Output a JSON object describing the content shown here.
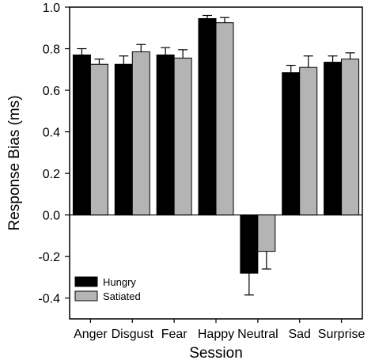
{
  "chart_data": {
    "type": "bar",
    "title": "",
    "xlabel": "Session",
    "ylabel": "Response Bias (ms)",
    "ylim": [
      -0.5,
      1.0
    ],
    "yticks": [
      {
        "value": 1.0,
        "label": "1.0"
      },
      {
        "value": 0.8,
        "label": "0.8"
      },
      {
        "value": 0.6,
        "label": "0.6"
      },
      {
        "value": 0.4,
        "label": "0.4"
      },
      {
        "value": 0.2,
        "label": "0.2"
      },
      {
        "value": 0.0,
        "label": "0.0"
      },
      {
        "value": -0.2,
        "label": "-0.2"
      },
      {
        "value": -0.4,
        "label": "-0.4"
      }
    ],
    "categories": [
      "Anger",
      "Disgust",
      "Fear",
      "Happy",
      "Neutral",
      "Sad",
      "Surprise"
    ],
    "series": [
      {
        "name": "Hungry",
        "color": "#000000",
        "values": [
          0.77,
          0.725,
          0.77,
          0.945,
          -0.28,
          0.685,
          0.735
        ],
        "errors": [
          0.03,
          0.04,
          0.035,
          0.015,
          0.105,
          0.035,
          0.03
        ]
      },
      {
        "name": "Satiated",
        "color": "#b4b4b4",
        "values": [
          0.725,
          0.785,
          0.755,
          0.925,
          -0.175,
          0.71,
          0.75
        ],
        "errors": [
          0.025,
          0.035,
          0.04,
          0.025,
          0.085,
          0.055,
          0.03
        ]
      }
    ],
    "grid": false,
    "legend_position": "bottom-left",
    "error_bars": true
  }
}
